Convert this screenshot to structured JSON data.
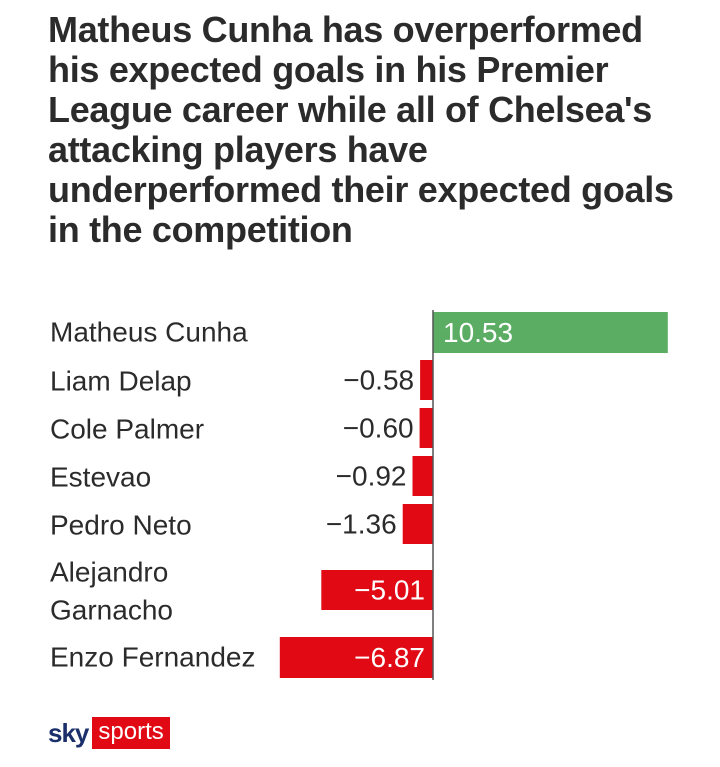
{
  "colors": {
    "positive": "#5aad62",
    "negative": "#e10a14",
    "text": "#2b2b2b",
    "axis": "#555555"
  },
  "chart_data": {
    "type": "bar",
    "orientation": "horizontal",
    "title": "Matheus Cunha has overperformed his expected goals in his Premier League career while all of Chelsea's attacking players have underperformed their expected goals in the competition",
    "categories": [
      "Matheus Cunha",
      "Liam Delap",
      "Cole Palmer",
      "Estevao",
      "Pedro Neto",
      "Alejandro Garnacho",
      "Enzo Fernandez"
    ],
    "category_lines": [
      [
        "Matheus Cunha"
      ],
      [
        "Liam Delap"
      ],
      [
        "Cole Palmer"
      ],
      [
        "Estevao"
      ],
      [
        "Pedro Neto"
      ],
      [
        "Alejandro",
        "Garnacho"
      ],
      [
        "Enzo Fernandez"
      ]
    ],
    "values": [
      10.53,
      -0.58,
      -0.6,
      -0.92,
      -1.36,
      -5.01,
      -6.87
    ],
    "value_labels": [
      "10.53",
      "−0.58",
      "−0.60",
      "−0.92",
      "−1.36",
      "−5.01",
      "−6.87"
    ],
    "xlabel": "",
    "ylabel": "",
    "legend": "none",
    "grid": false
  },
  "footer": {
    "logo_sky": "sky",
    "logo_sports": "sports"
  }
}
